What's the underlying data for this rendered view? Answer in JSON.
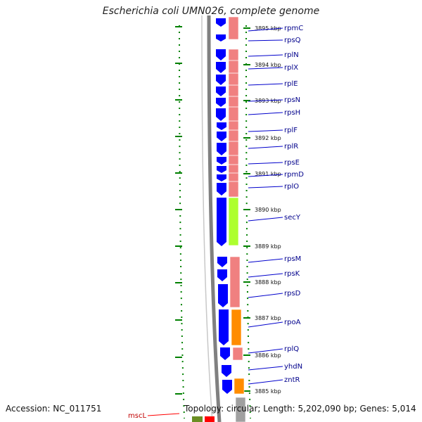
{
  "title": "Escherichia coli UMN026, complete genome",
  "footer": {
    "accession": "Accession: NC_011751",
    "summary": "Topology: circular; Length: 5,202,090 bp; Genes: 5,014"
  },
  "colors": {
    "gene_arrow": "#0000ff",
    "ribosomal": "#f08080",
    "secY": "#adff2f",
    "rpoA": "#ff8c00",
    "backbone": "#808080",
    "tick": "#008000",
    "label": "#00008b",
    "mscL_label": "#c00000"
  },
  "scale_ticks": [
    {
      "label": "3895 kbp"
    },
    {
      "label": "3894 kbp"
    },
    {
      "label": "3893 kbp"
    },
    {
      "label": "3892 kbp"
    },
    {
      "label": "3891 kbp"
    },
    {
      "label": "3890 kbp"
    },
    {
      "label": "3889 kbp"
    },
    {
      "label": "3888 kbp"
    },
    {
      "label": "3887 kbp"
    },
    {
      "label": "3886 kbp"
    },
    {
      "label": "3885 kbp"
    }
  ],
  "genes": [
    {
      "name": "rpmC"
    },
    {
      "name": "rpsQ"
    },
    {
      "name": "rplN"
    },
    {
      "name": "rplX"
    },
    {
      "name": "rplE"
    },
    {
      "name": "rpsN"
    },
    {
      "name": "rpsH"
    },
    {
      "name": "rplF"
    },
    {
      "name": "rplR"
    },
    {
      "name": "rpsE"
    },
    {
      "name": "rpmD"
    },
    {
      "name": "rplO"
    },
    {
      "name": "secY"
    },
    {
      "name": "rpsM"
    },
    {
      "name": "rpsK"
    },
    {
      "name": "rpsD"
    },
    {
      "name": "rpoA"
    },
    {
      "name": "rplQ"
    },
    {
      "name": "yhdN"
    },
    {
      "name": "zntR"
    },
    {
      "name": "mscL"
    }
  ]
}
